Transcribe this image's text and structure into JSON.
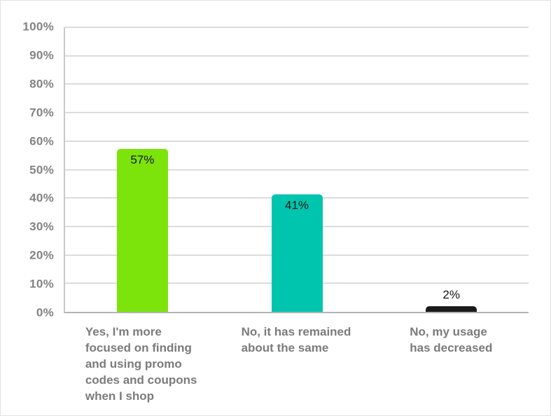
{
  "chart_data": {
    "type": "bar",
    "title": "",
    "xlabel": "",
    "ylabel": "",
    "ylim": [
      0,
      100
    ],
    "grid": true,
    "legend": false,
    "y_ticks": [
      "0%",
      "10%",
      "20%",
      "30%",
      "40%",
      "50%",
      "60%",
      "70%",
      "80%",
      "90%",
      "100%"
    ],
    "categories": [
      "Yes, I'm more focused on finding and using promo codes and coupons when I shop",
      "No, it has remained about the same",
      "No, my usage has decreased"
    ],
    "categories_lines": [
      [
        "Yes, I'm more",
        "focused on finding",
        "and using promo",
        "codes and coupons",
        "when I shop"
      ],
      [
        "No, it has remained",
        "about the same"
      ],
      [
        "No, my usage",
        "has decreased"
      ]
    ],
    "values": [
      57,
      41,
      2
    ],
    "value_labels": [
      "57%",
      "41%",
      "2%"
    ],
    "bar_colors": [
      "#7CE40A",
      "#00C5AE",
      "#1A1A1A"
    ]
  },
  "colors": {
    "background": "#FFFFFF",
    "gridline": "#DCDCDC",
    "axis_line_left": "#C9C9C9",
    "axis_line_bottom": "#B3B3B3",
    "y_tick_label": "#838383",
    "category_label": "#7B7B7B",
    "value_label": "#141414"
  }
}
